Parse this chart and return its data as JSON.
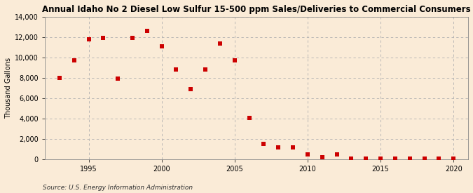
{
  "title": "Annual Idaho No 2 Diesel Low Sulfur 15-500 ppm Sales/Deliveries to Commercial Consumers",
  "ylabel": "Thousand Gallons",
  "source": "Source: U.S. Energy Information Administration",
  "background_color": "#faebd7",
  "plot_background_color": "#faebd7",
  "scatter_color": "#cc0000",
  "years": [
    1993,
    1994,
    1995,
    1996,
    1997,
    1998,
    1999,
    2000,
    2001,
    2002,
    2003,
    2004,
    2005,
    2006,
    2007,
    2008,
    2009,
    2010,
    2011,
    2012,
    2013,
    2014,
    2015,
    2016,
    2017,
    2018,
    2019,
    2020
  ],
  "values": [
    8000,
    9700,
    11800,
    11900,
    7900,
    11900,
    12600,
    11100,
    8800,
    6900,
    8800,
    11400,
    9700,
    4100,
    1500,
    1200,
    1200,
    500,
    200,
    500,
    100,
    50,
    50,
    100,
    50,
    50,
    50,
    50
  ],
  "ylim": [
    0,
    14000
  ],
  "xlim": [
    1992,
    2021
  ],
  "yticks": [
    0,
    2000,
    4000,
    6000,
    8000,
    10000,
    12000,
    14000
  ],
  "xticks": [
    1995,
    2000,
    2005,
    2010,
    2015,
    2020
  ],
  "marker_size": 5,
  "title_fontsize": 8.5,
  "label_fontsize": 7,
  "tick_fontsize": 7,
  "source_fontsize": 6.5
}
